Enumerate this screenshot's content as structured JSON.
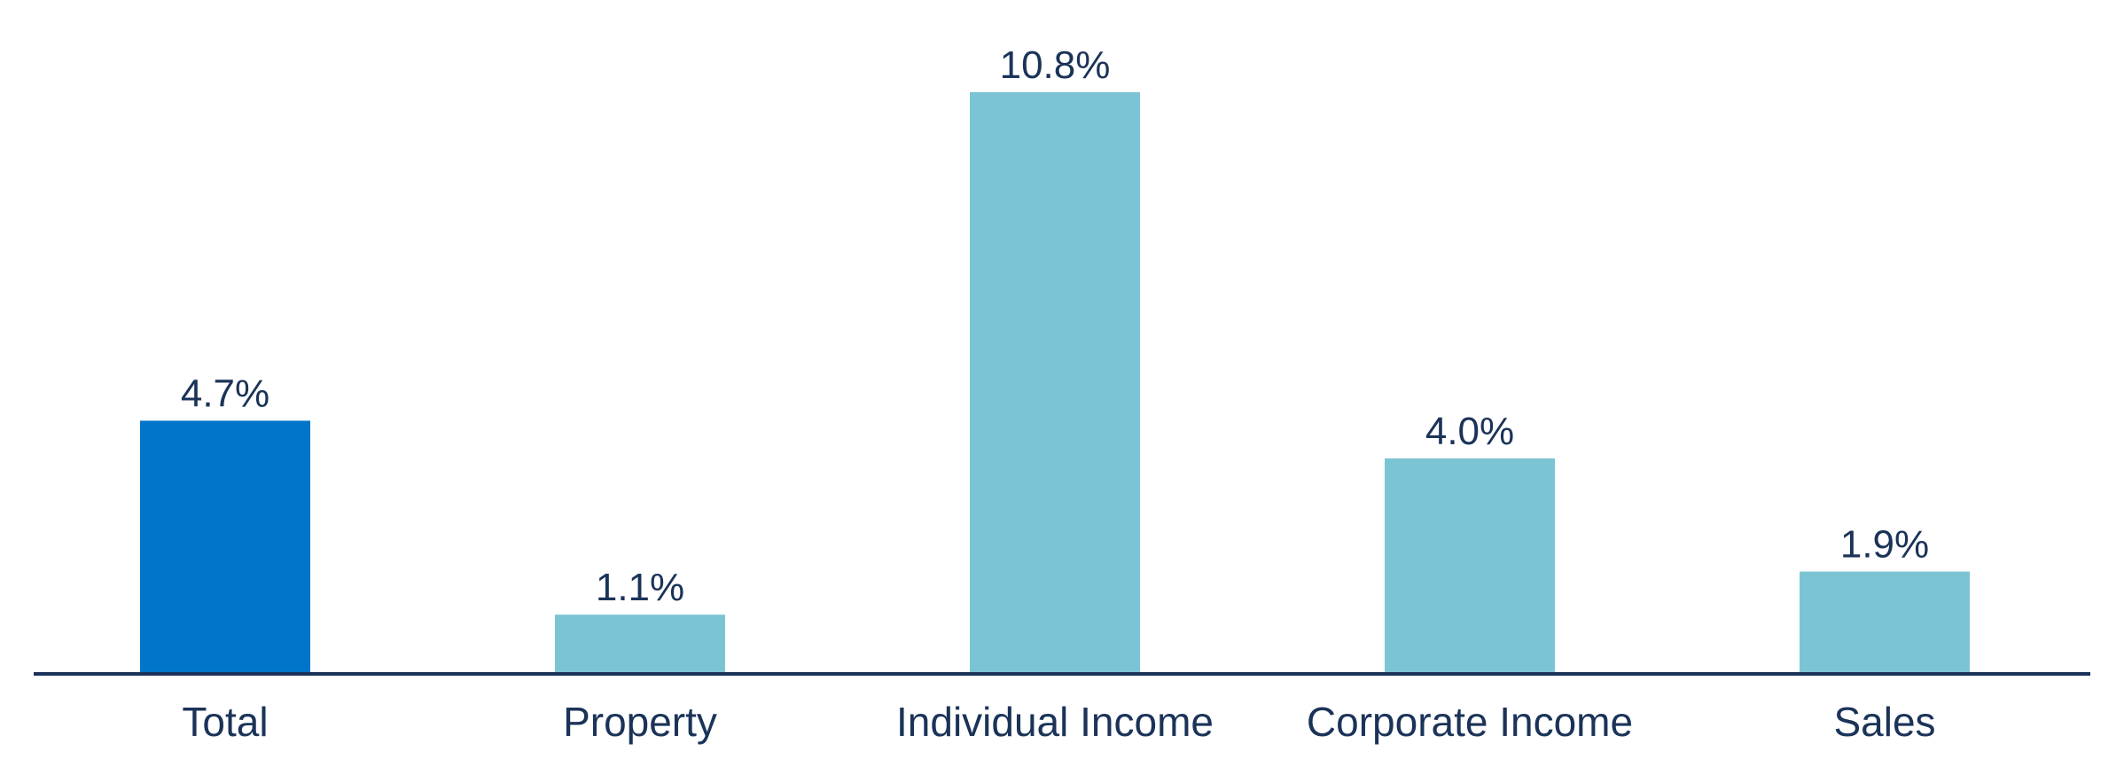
{
  "chart_data": {
    "type": "bar",
    "title": "",
    "xlabel": "",
    "ylabel": "",
    "categories": [
      "Total",
      "Property",
      "Individual Income",
      "Corporate Income",
      "Sales"
    ],
    "values": [
      4.7,
      1.1,
      10.8,
      4.0,
      1.9
    ],
    "value_labels": [
      "4.7%",
      "1.1%",
      "10.8%",
      "4.0%",
      "1.9%"
    ],
    "unit": "%",
    "ylim": [
      0,
      12
    ],
    "grid": false,
    "legend": "none",
    "axis_visible": {
      "x": true,
      "y": false
    },
    "colors": {
      "highlight": "#0075c9",
      "bars": "#7bc4d4",
      "axis": "#1b3358",
      "text": "#1b3358"
    },
    "highlight_categories": [
      "Total"
    ]
  }
}
